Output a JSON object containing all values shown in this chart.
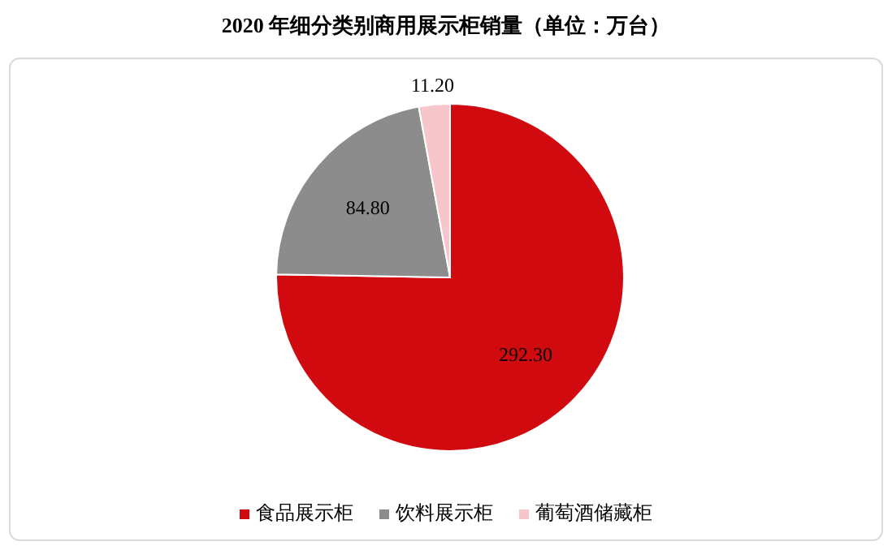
{
  "chart_data": {
    "type": "pie",
    "title": "2020 年细分类别商用展示柜销量（单位：万台）",
    "categories": [
      "食品展示柜",
      "饮料展示柜",
      "葡萄酒储藏柜"
    ],
    "values": [
      292.3,
      84.8,
      11.2
    ],
    "value_labels": [
      "292.30",
      "84.80",
      "11.20"
    ],
    "colors": [
      "#d10a10",
      "#8c8c8c",
      "#f7c6cb"
    ],
    "legend": "bottom"
  }
}
